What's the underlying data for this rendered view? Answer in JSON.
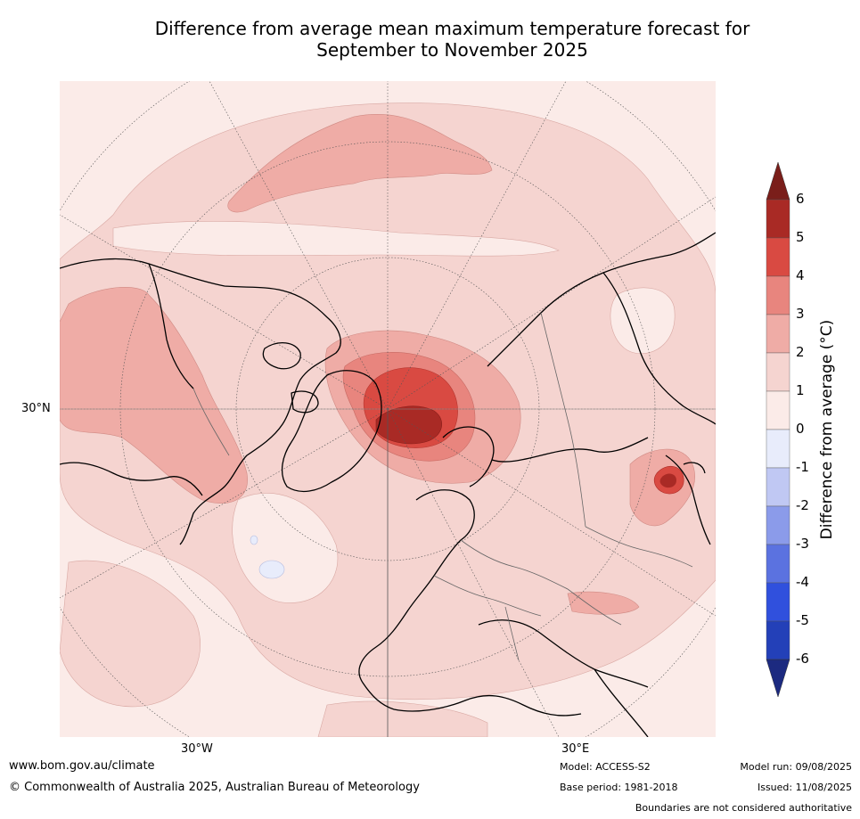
{
  "title_line1": "Difference from average mean maximum temperature forecast for",
  "title_line2": "September to November 2025",
  "lat_label": "30°N",
  "lon_label_west": "30°W",
  "lon_label_east": "30°E",
  "colorbar": {
    "axis_label": "Difference from average (°C)",
    "ticks": [
      "6",
      "5",
      "4",
      "3",
      "2",
      "1",
      "0",
      "-1",
      "-2",
      "-3",
      "-4",
      "-5",
      "-6"
    ],
    "colors": [
      "#7a1e1a",
      "#a92a25",
      "#d94a42",
      "#e8857e",
      "#efaca6",
      "#f5d4d0",
      "#fbebe8",
      "#e8ecfb",
      "#c0c8f3",
      "#8b9bea",
      "#5b72e0",
      "#3050dd",
      "#2340b8",
      "#1c2a80"
    ]
  },
  "footer": {
    "url": "www.bom.gov.au/climate",
    "copyright": "© Commonwealth of Australia 2025, Australian Bureau of Meteorology",
    "model": "Model: ACCESS-S2",
    "base_period": "Base period: 1981-2018",
    "model_run": "Model run: 09/08/2025",
    "issued": "Issued: 11/08/2025",
    "disclaimer": "Boundaries are not considered authoritative"
  }
}
